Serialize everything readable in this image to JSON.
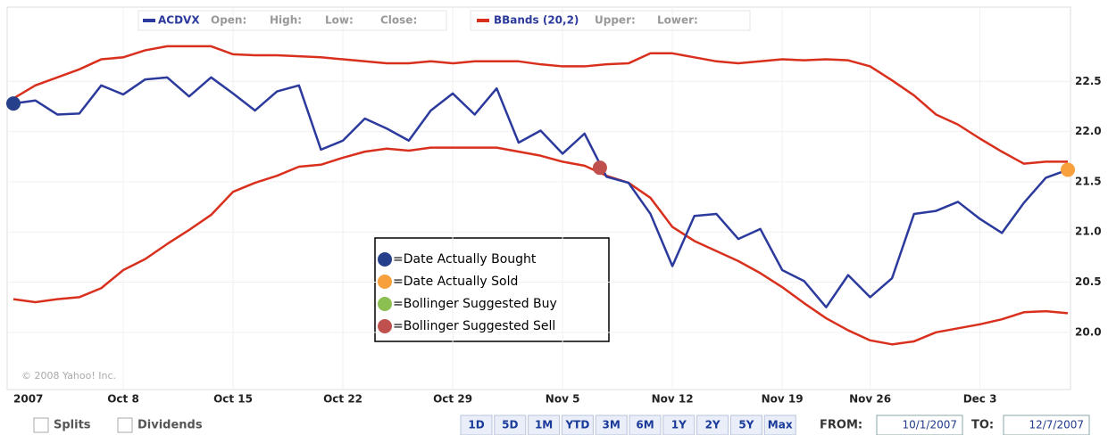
{
  "chart_data": {
    "type": "line",
    "categories": [
      "2007",
      null,
      null,
      null,
      null,
      "Oct 8",
      null,
      null,
      null,
      null,
      "Oct 15",
      null,
      null,
      null,
      null,
      "Oct 22",
      null,
      null,
      null,
      null,
      "Oct 29",
      null,
      null,
      null,
      null,
      "Nov 5",
      null,
      null,
      null,
      null,
      "Nov 12",
      null,
      null,
      null,
      null,
      "Nov 19",
      null,
      null,
      null,
      "Nov 26",
      null,
      null,
      null,
      null,
      "Dec 3",
      null,
      null,
      null,
      null
    ],
    "series": [
      {
        "name": "ACDVX",
        "color": "#2b3a9c",
        "fields": [
          "Open:",
          "High:",
          "Low:",
          "Close:"
        ],
        "values": [
          22.28,
          22.31,
          22.17,
          22.18,
          22.46,
          22.37,
          22.52,
          22.54,
          22.35,
          22.54,
          22.38,
          22.21,
          22.4,
          22.46,
          21.82,
          21.91,
          22.13,
          22.03,
          21.91,
          22.21,
          22.38,
          22.17,
          22.43,
          21.89,
          22.01,
          21.78,
          21.98,
          21.55,
          21.49,
          21.18,
          20.66,
          21.16,
          21.18,
          20.93,
          21.03,
          20.62,
          20.51,
          20.25,
          20.57,
          20.35,
          20.54,
          21.18,
          21.21,
          21.3,
          21.13,
          20.99,
          21.29,
          21.54,
          21.62
        ]
      },
      {
        "name": "BBands (20,2)",
        "color": "#d9301e",
        "fields": [
          "Upper:",
          "Lower:"
        ],
        "upper": [
          22.33,
          22.46,
          22.54,
          22.62,
          22.72,
          22.74,
          22.81,
          22.85,
          22.85,
          22.85,
          22.77,
          22.76,
          22.76,
          22.75,
          22.74,
          22.72,
          22.7,
          22.68,
          22.68,
          22.7,
          22.68,
          22.7,
          22.7,
          22.7,
          22.67,
          22.65,
          22.65,
          22.67,
          22.68,
          22.78,
          22.78,
          22.74,
          22.7,
          22.68,
          22.7,
          22.72,
          22.71,
          22.72,
          22.71,
          22.65,
          22.51,
          22.36,
          22.17,
          22.07,
          21.93,
          21.8,
          21.68,
          21.7,
          21.7
        ],
        "lower": [
          20.33,
          20.3,
          20.33,
          20.35,
          20.44,
          20.62,
          20.73,
          20.88,
          21.02,
          21.17,
          21.4,
          21.49,
          21.56,
          21.65,
          21.67,
          21.74,
          21.8,
          21.83,
          21.81,
          21.84,
          21.84,
          21.84,
          21.84,
          21.8,
          21.76,
          21.7,
          21.66,
          21.56,
          21.49,
          21.34,
          21.05,
          20.91,
          20.81,
          20.71,
          20.59,
          20.45,
          20.29,
          20.14,
          20.02,
          19.92,
          19.88,
          19.91,
          20.0,
          20.04,
          20.08,
          20.13,
          20.2,
          20.21,
          20.19
        ]
      }
    ],
    "ylim": [
      19.43,
      23.24
    ],
    "yticks": [
      {
        "value": 20,
        "label": "20.0"
      },
      20.5,
      {
        "value": 21,
        "label": "21.0"
      },
      21.5,
      {
        "value": 22,
        "label": "22.0"
      },
      22.5
    ],
    "grid": true,
    "markers": [
      {
        "label": "=Date Actually Bought",
        "color": "#27408b",
        "index": 0,
        "value": 22.28
      },
      {
        "label": "=Date Actually Sold",
        "color": "#f7a03c",
        "index": 48,
        "value": 21.62
      },
      {
        "label": "=Bollinger Suggested Buy",
        "color": "#8cbf52"
      },
      {
        "label": "=Bollinger Suggested Sell",
        "color": "#c0504d",
        "index": 26.7,
        "value": 21.64
      }
    ],
    "copyright": "© 2008 Yahoo! Inc.",
    "checkboxes": [
      "Splits",
      "Dividends"
    ],
    "ranges": [
      "1D",
      "5D",
      "1M",
      "YTD",
      "3M",
      "6M",
      "1Y",
      "2Y",
      "5Y",
      "Max"
    ],
    "from_label": "FROM:",
    "from": "10/1/2007",
    "to_label": "TO:",
    "to": "12/7/2007"
  }
}
